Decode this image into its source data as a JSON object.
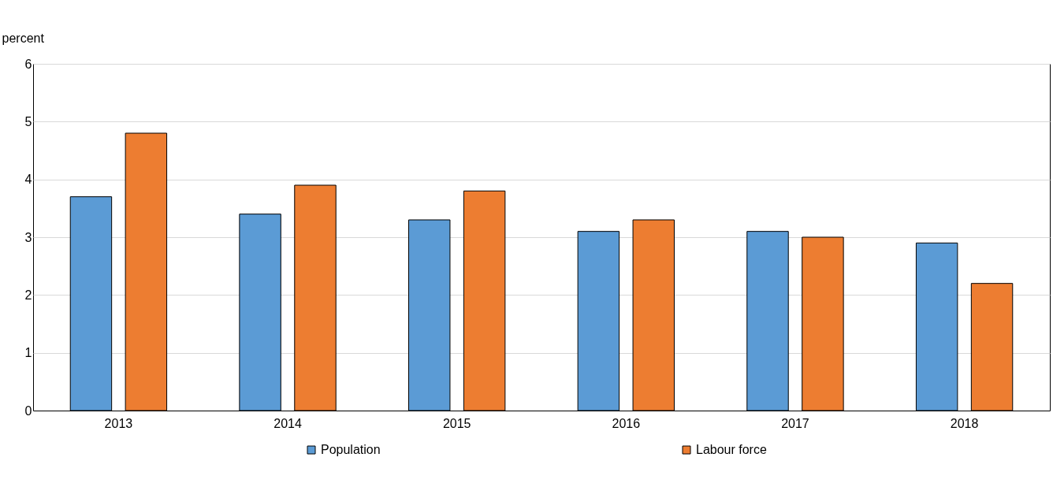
{
  "chart_data": {
    "type": "bar",
    "ylabel": "percent",
    "categories": [
      "2013",
      "2014",
      "2015",
      "2016",
      "2017",
      "2018"
    ],
    "series": [
      {
        "name": "Population",
        "color": "#5b9bd5",
        "values": [
          3.7,
          3.4,
          3.3,
          3.1,
          3.1,
          2.9
        ]
      },
      {
        "name": "Labour force",
        "color": "#ed7d31",
        "values": [
          4.8,
          3.9,
          3.8,
          3.3,
          3.0,
          2.2
        ]
      }
    ],
    "ylim": [
      0,
      6
    ],
    "yticks": [
      0,
      1,
      2,
      3,
      4,
      5,
      6
    ],
    "grid": "y",
    "legend": "bottom"
  }
}
